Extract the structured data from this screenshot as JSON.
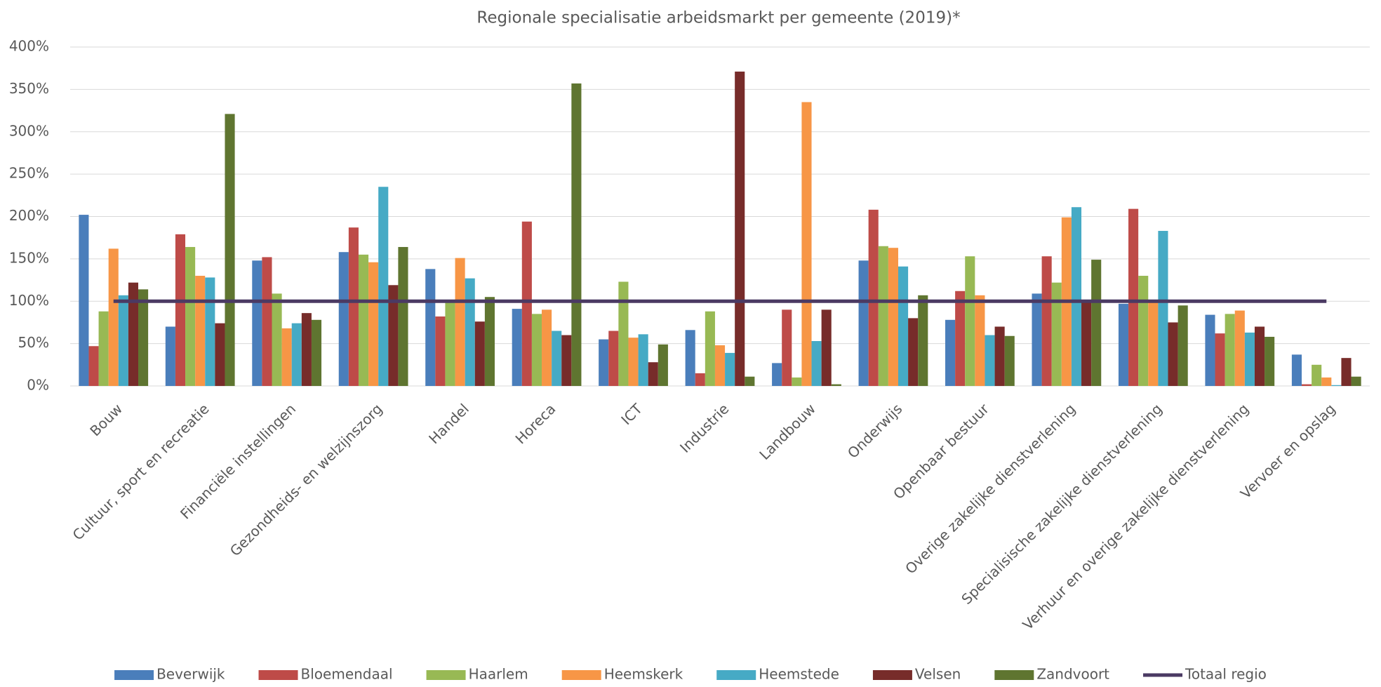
{
  "chart_data": {
    "type": "bar",
    "title": "Regionale specialisatie arbeidsmarkt per gemeente (2019)*",
    "categories": [
      "Bouw",
      "Cultuur, sport en recreatie",
      "Financiële instellingen",
      "Gezondheids- en welzijnszorg",
      "Handel",
      "Horeca",
      "ICT",
      "Industrie",
      "Landbouw",
      "Onderwijs",
      "Openbaar bestuur",
      "Overige zakelijke dienstverlening",
      "Specialisische zakelijke dienstverlening",
      "Verhuur en overige zakelijke dienstverlening",
      "Vervoer en opslag"
    ],
    "series": [
      {
        "name": "Beverwijk",
        "color": "#4a7ebb",
        "values": [
          202,
          70,
          148,
          158,
          138,
          91,
          55,
          66,
          27,
          148,
          78,
          109,
          97,
          84,
          37
        ]
      },
      {
        "name": "Bloemendaal",
        "color": "#be4b48",
        "values": [
          47,
          179,
          152,
          187,
          82,
          194,
          65,
          15,
          90,
          208,
          112,
          153,
          209,
          62,
          2
        ]
      },
      {
        "name": "Haarlem",
        "color": "#98b954",
        "values": [
          88,
          164,
          109,
          155,
          99,
          85,
          123,
          88,
          10,
          165,
          153,
          122,
          130,
          85,
          25
        ]
      },
      {
        "name": "Heemskerk",
        "color": "#f79646",
        "values": [
          162,
          130,
          68,
          146,
          151,
          90,
          57,
          48,
          335,
          163,
          107,
          199,
          101,
          89,
          10
        ]
      },
      {
        "name": "Heemstede",
        "color": "#46aac5",
        "values": [
          107,
          128,
          74,
          235,
          127,
          65,
          61,
          39,
          53,
          141,
          60,
          211,
          183,
          63,
          1
        ]
      },
      {
        "name": "Velsen",
        "color": "#772c2a",
        "values": [
          122,
          74,
          86,
          119,
          76,
          60,
          28,
          371,
          90,
          80,
          70,
          101,
          75,
          70,
          33
        ]
      },
      {
        "name": "Zandvoort",
        "color": "#5f7530",
        "values": [
          114,
          321,
          78,
          164,
          105,
          357,
          49,
          11,
          2,
          107,
          59,
          149,
          95,
          58,
          11
        ]
      },
      {
        "name": "Totaal regio",
        "color": "#4b3a63",
        "type": "line",
        "values": [
          100,
          100,
          100,
          100,
          100,
          100,
          100,
          100,
          100,
          100,
          100,
          100,
          100,
          100,
          100
        ]
      }
    ],
    "ylim": [
      0,
      400
    ],
    "yticks": [
      {
        "value": 0,
        "label": "0%"
      },
      {
        "value": 50,
        "label": "50%"
      },
      {
        "value": 100,
        "label": "100%"
      },
      {
        "value": 150,
        "label": "150%"
      },
      {
        "value": 200,
        "label": "200%"
      },
      {
        "value": 250,
        "label": "250%"
      },
      {
        "value": 300,
        "label": "300%"
      },
      {
        "value": 350,
        "label": "350%"
      },
      {
        "value": 400,
        "label": "400%"
      }
    ],
    "grid": true,
    "legend": "bottom"
  }
}
